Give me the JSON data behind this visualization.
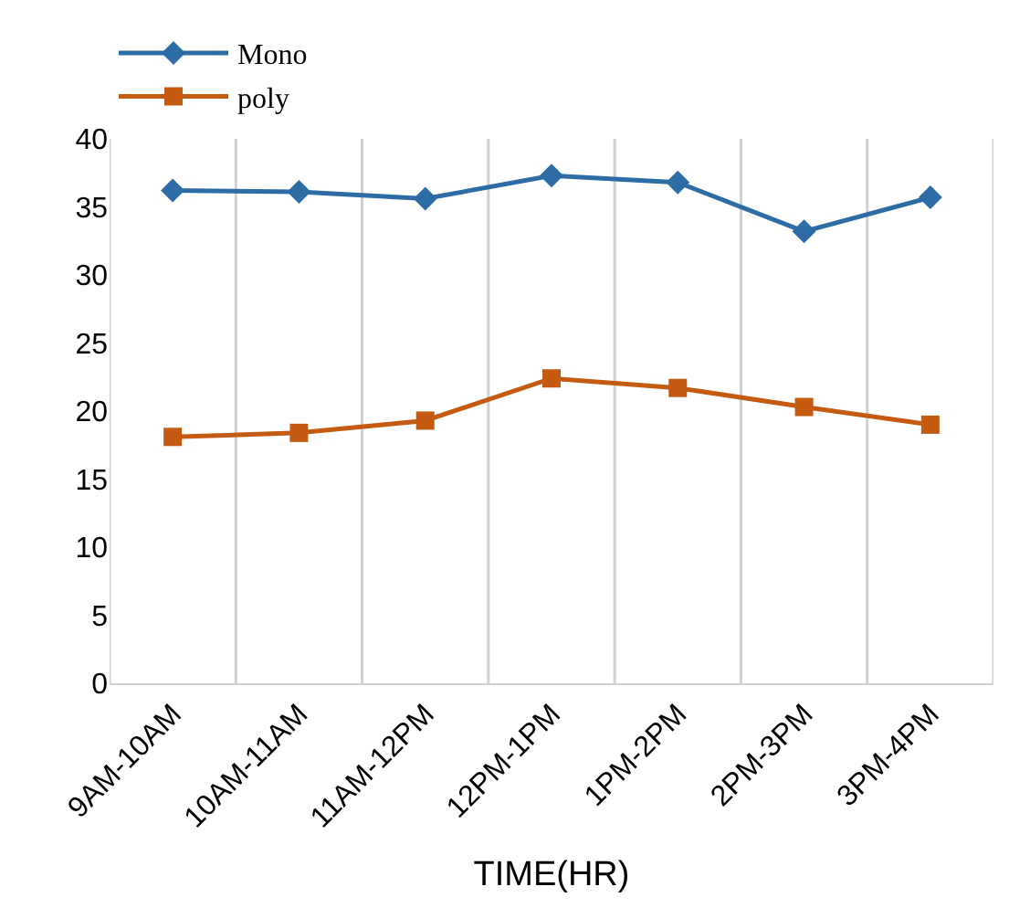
{
  "chart_data": {
    "type": "line",
    "xlabel": "TIME(HR)",
    "categories": [
      "9AM-10AM",
      "10AM-11AM",
      "11AM-12PM",
      "12PM-1PM",
      "1PM-2PM",
      "2PM-3PM",
      "3PM-4PM"
    ],
    "series": [
      {
        "name": "Mono",
        "color": "#2e6ca6",
        "marker": "diamond",
        "values": [
          36.2,
          36.1,
          35.6,
          37.3,
          36.8,
          33.2,
          35.7
        ]
      },
      {
        "name": "poly",
        "color": "#c55a11",
        "marker": "square",
        "values": [
          18.1,
          18.4,
          19.3,
          22.4,
          21.7,
          20.3,
          19.0
        ]
      }
    ],
    "ylim": [
      0,
      40
    ],
    "yticks": [
      0,
      5,
      10,
      15,
      20,
      25,
      30,
      35,
      40
    ],
    "grid": "x",
    "legend": "top",
    "line_style": "solid"
  }
}
